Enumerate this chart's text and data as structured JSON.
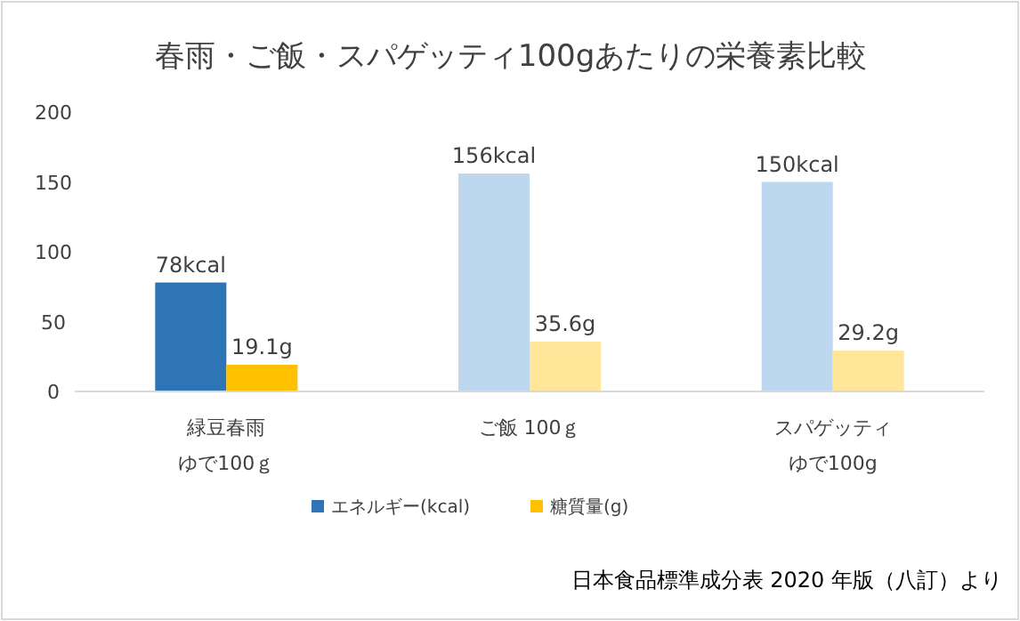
{
  "chart_data": {
    "type": "bar",
    "title": "春雨・ご飯・スパゲッティ100gあたりの栄養素比較",
    "categories": [
      "緑豆春雨ゆで100ｇ",
      "ご飯 100ｇ",
      "スパゲッティゆで100g"
    ],
    "series": [
      {
        "name": "エネルギー(kcal)",
        "color": "#2e75b6",
        "colors": [
          "#2e75b6",
          "#bdd7ee",
          "#bdd7ee"
        ],
        "values": [
          78,
          156,
          150
        ],
        "value_labels": [
          "78kcal",
          "156kcal",
          "150kcal"
        ]
      },
      {
        "name": "糖質量(g)",
        "color": "#ffc000",
        "colors": [
          "#ffc000",
          "#ffe699",
          "#ffe699"
        ],
        "values": [
          19.1,
          35.6,
          29.2
        ],
        "value_labels": [
          "19.1g",
          "35.6g",
          "29.2g"
        ]
      }
    ],
    "ylim": [
      0,
      200
    ],
    "yticks": [
      0,
      50,
      100,
      150,
      200
    ],
    "grid": false,
    "legend": "bottom",
    "annotations": [
      "日本食品標準成分表 2020 年版（八訂）より"
    ]
  }
}
